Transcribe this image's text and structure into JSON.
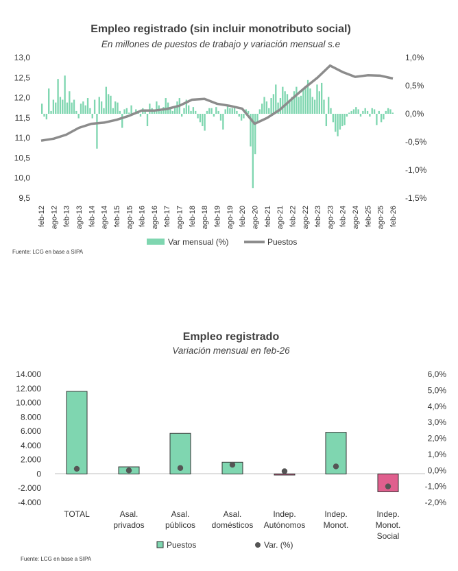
{
  "chart_data": [
    {
      "type": "line",
      "title": "Empleo registrado (sin incluir monotributo social)",
      "subtitle": "En millones de puestos de trabajo y variación mensual s.e",
      "x_tick_labels": [
        "feb-12",
        "ago-12",
        "feb-13",
        "ago-13",
        "feb-14",
        "ago-14",
        "feb-15",
        "ago-15",
        "feb-16",
        "ago-16",
        "feb-17",
        "ago-17",
        "feb-18",
        "ago-18",
        "feb-19",
        "ago-19",
        "feb-20",
        "ago-20",
        "feb-21",
        "ago-21",
        "feb-22",
        "ago-22",
        "feb-23",
        "ago-23",
        "feb-24",
        "ago-24",
        "feb-25",
        "ago-25",
        "feb-26"
      ],
      "y_left_ticks": [
        "13,0",
        "12,5",
        "12,0",
        "11,5",
        "11,0",
        "10,5",
        "10,0",
        "9,5"
      ],
      "y_right_ticks": [
        "1,0%",
        "0,5%",
        "0,0%",
        "-0,5%",
        "-1,0%",
        "-1,5%"
      ],
      "ylim_left": [
        9.5,
        13.0
      ],
      "ylim_right": [
        -1.5,
        1.0
      ],
      "grid": false,
      "legend_position": "bottom",
      "source": "Fuente: LCG en base a SIPA",
      "series": [
        {
          "name": "Puestos",
          "axis": "left",
          "color": "#8c8c8c",
          "x": [
            "feb-12",
            "ago-12",
            "feb-13",
            "ago-13",
            "feb-14",
            "ago-14",
            "feb-15",
            "ago-15",
            "feb-16",
            "ago-16",
            "feb-17",
            "ago-17",
            "feb-18",
            "ago-18",
            "feb-19",
            "ago-19",
            "feb-20",
            "ago-20",
            "feb-21",
            "ago-21",
            "feb-22",
            "ago-22",
            "feb-23",
            "ago-23",
            "feb-24",
            "ago-24",
            "feb-25",
            "ago-25",
            "feb-26"
          ],
          "values": [
            10.93,
            10.98,
            11.08,
            11.25,
            11.35,
            11.38,
            11.45,
            11.55,
            11.68,
            11.68,
            11.72,
            11.8,
            11.95,
            11.97,
            11.85,
            11.8,
            11.73,
            11.35,
            11.5,
            11.7,
            11.98,
            12.25,
            12.5,
            12.8,
            12.64,
            12.52,
            12.56,
            12.55,
            12.48
          ]
        },
        {
          "name": "Var mensual (%)",
          "axis": "right",
          "type": "bar",
          "color": "#7fd6b0",
          "values": [
            0.18,
            -0.05,
            -0.1,
            0.45,
            0.05,
            0.25,
            0.2,
            0.62,
            0.3,
            0.25,
            0.68,
            0.2,
            0.4,
            0.2,
            0.25,
            0.05,
            -0.08,
            0.18,
            0.22,
            0.15,
            0.28,
            0.1,
            -0.08,
            0.25,
            -0.62,
            0.3,
            0.22,
            0.1,
            0.48,
            0.35,
            0.32,
            0.1,
            0.22,
            0.2,
            0.05,
            -0.25,
            0.08,
            0.1,
            0.02,
            0.15,
            0.02,
            0.08,
            0.05,
            -0.05,
            0.1,
            0.08,
            -0.22,
            0.18,
            0.1,
            0.05,
            0.22,
            0.15,
            0.05,
            0.12,
            0.28,
            0.2,
            0.1,
            0.05,
            0.12,
            0.22,
            0.28,
            -0.05,
            0.1,
            0.25,
            0.15,
            0.05,
            0.12,
            0.05,
            -0.08,
            -0.15,
            -0.22,
            -0.3,
            0.05,
            0.1,
            0.1,
            -0.05,
            0.12,
            0.05,
            -0.12,
            -0.28,
            0.08,
            0.15,
            0.1,
            0.1,
            0.12,
            0.05,
            -0.05,
            -0.12,
            -0.08,
            0.08,
            0.05,
            -0.58,
            -1.32,
            -0.72,
            -0.15,
            0.08,
            0.18,
            0.3,
            0.22,
            0.1,
            0.28,
            0.35,
            0.52,
            0.2,
            0.28,
            0.48,
            0.4,
            0.35,
            0.22,
            0.3,
            0.4,
            0.48,
            0.3,
            0.32,
            0.42,
            0.5,
            0.6,
            0.45,
            0.3,
            0.25,
            0.52,
            0.4,
            0.55,
            0.25,
            -0.22,
            0.3,
            0.1,
            -0.15,
            -0.32,
            -0.4,
            -0.28,
            -0.22,
            -0.2,
            -0.05,
            0.02,
            0.05,
            0.08,
            0.12,
            0.08,
            -0.05,
            0.05,
            0.1,
            0.05,
            -0.05,
            0.1,
            0.08,
            -0.2,
            0.05,
            -0.15,
            -0.1,
            0.05,
            0.1,
            0.08,
            0.02
          ]
        }
      ]
    },
    {
      "type": "bar",
      "title": "Empleo registrado",
      "subtitle": "Variación mensual en feb-26",
      "categories": [
        "TOTAL",
        "Asal. privados",
        "Asal. públicos",
        "Asal. domésticos",
        "Indep. Autónomos",
        "Indep. Monot.",
        "Indep. Monot. Social"
      ],
      "category_lines": [
        [
          "TOTAL"
        ],
        [
          "Asal.",
          "privados"
        ],
        [
          "Asal.",
          "públicos"
        ],
        [
          "Asal.",
          "domésticos"
        ],
        [
          "Indep.",
          "Autónomos"
        ],
        [
          "Indep.",
          "Monot."
        ],
        [
          "Indep.",
          "Monot.",
          "Social"
        ]
      ],
      "y_left_ticks": [
        "14.000",
        "12.000",
        "10.000",
        "8.000",
        "6.000",
        "4.000",
        "2.000",
        "0",
        "-2.000",
        "-4.000"
      ],
      "y_right_ticks": [
        "6,0%",
        "5,0%",
        "4,0%",
        "3,0%",
        "2,0%",
        "1,0%",
        "0,0%",
        "-1,0%",
        "-2,0%"
      ],
      "ylim_left": [
        -4000,
        14000
      ],
      "ylim_right": [
        -2.0,
        6.0
      ],
      "grid": false,
      "legend_position": "bottom",
      "source": "Fuente: LCG en base a SIPA",
      "series": [
        {
          "name": "Puestos",
          "axis": "left",
          "color": "#7fd6b0",
          "negative_color": "#e05f8e",
          "values": [
            11600,
            1000,
            5700,
            1650,
            -150,
            5850,
            -2500
          ]
        },
        {
          "name": "Var. (%)",
          "axis": "right",
          "color": "#555555",
          "values": [
            0.1,
            0.0,
            0.15,
            0.35,
            -0.05,
            0.25,
            -1.0
          ]
        }
      ]
    }
  ]
}
